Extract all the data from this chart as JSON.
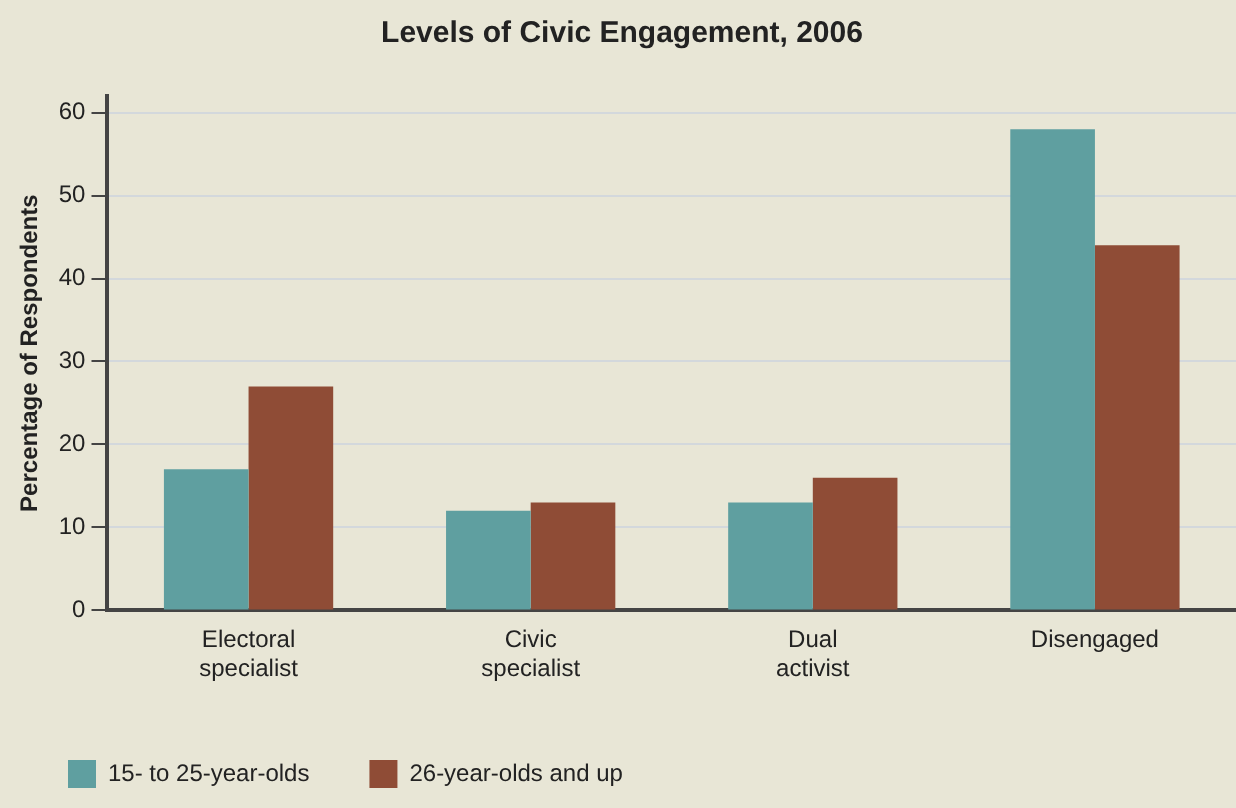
{
  "chart_data": {
    "type": "bar",
    "title": "Levels of Civic Engagement, 2006",
    "ylabel": "Percentage of Respondents",
    "categories": [
      "Electoral specialist",
      "Civic specialist",
      "Dual activist",
      "Disengaged"
    ],
    "series": [
      {
        "name": "15- to 25-year-olds",
        "color": "#5f9fa0",
        "values": [
          17,
          12,
          13,
          58
        ]
      },
      {
        "name": "26-year-olds and up",
        "color": "#8f4c36",
        "values": [
          27,
          13,
          16,
          44
        ]
      }
    ],
    "ylim": [
      0,
      62
    ],
    "yticks": [
      0,
      10,
      20,
      30,
      40,
      50,
      60
    ],
    "grid": "y",
    "legend": "bottom left"
  }
}
